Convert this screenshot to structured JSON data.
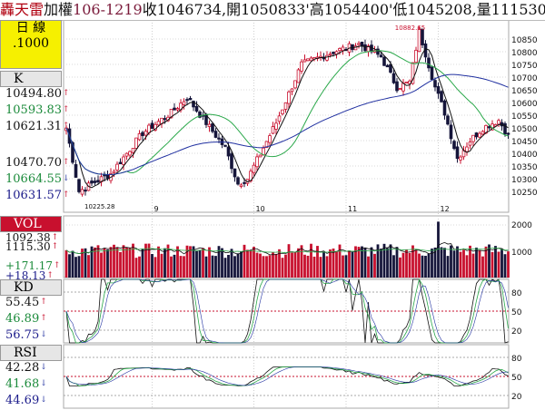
{
  "header": {
    "name": "轟天雷",
    "board": "加權",
    "date": "106-1219",
    "close_label": "收",
    "close": "1046734",
    "open_label": ",開",
    "open": "1050833'",
    "high_label": "高",
    "high": "1054400'",
    "low_label": "低",
    "low": "1045208",
    "vol_label": ",量",
    "vol": "111530'"
  },
  "logo": {
    "line1": "日  線",
    "line2": ".1000"
  },
  "panels": {
    "k": {
      "title": "K",
      "values": [
        {
          "text": "10494.80",
          "color": "#111111",
          "arrow": "up"
        },
        {
          "text": "10593.83",
          "color": "#1a8a3a",
          "arrow": "up"
        },
        {
          "text": "10621.31",
          "color": "#111111",
          "arrow": "up"
        },
        {
          "text": "10470.70",
          "color": "#111111",
          "arrow": "up"
        },
        {
          "text": "10664.55",
          "color": "#1a8a3a",
          "arrow": "down"
        },
        {
          "text": "10631.57",
          "color": "#1a1a8a",
          "arrow": "up"
        }
      ]
    },
    "vol": {
      "title": "VOL",
      "values": [
        {
          "text": "1092.38",
          "color": "#111111",
          "arrow": "up"
        },
        {
          "text": "1115.30",
          "color": "#111111",
          "arrow": "up"
        },
        {
          "text": "+171.17",
          "color": "#1a8a3a",
          "arrow": "up"
        },
        {
          "text": "+18.13",
          "color": "#1a1a8a",
          "arrow": "up"
        }
      ]
    },
    "kd": {
      "title": "KD",
      "values": [
        {
          "text": "55.45",
          "color": "#111111",
          "arrow": "up"
        },
        {
          "text": "46.89",
          "color": "#1a8a3a",
          "arrow": "up"
        },
        {
          "text": "56.75",
          "color": "#1a1a8a",
          "arrow": "down"
        }
      ]
    },
    "rsi": {
      "title": "RSI",
      "values": [
        {
          "text": "42.28",
          "color": "#111111",
          "arrow": "down"
        },
        {
          "text": "41.68",
          "color": "#1a8a3a",
          "arrow": "down"
        },
        {
          "text": "44.69",
          "color": "#1a1a8a",
          "arrow": "down"
        }
      ]
    }
  },
  "chart_data": {
    "type": "candlestick",
    "price_ticks": [
      "10850",
      "10800",
      "10750",
      "10700",
      "10650",
      "10600",
      "10550",
      "10500",
      "10450",
      "10400",
      "10350",
      "10300",
      "10250"
    ],
    "month_labels": [
      {
        "label": "9",
        "index": 27
      },
      {
        "label": "10",
        "index": 59
      },
      {
        "label": "11",
        "index": 88
      },
      {
        "label": "12",
        "index": 117
      }
    ],
    "annotations": [
      {
        "text": "10882.65",
        "index": 111
      },
      {
        "text": "10225.28",
        "index": 4
      }
    ],
    "vol_ticks": [
      "2000",
      "1000"
    ],
    "kd_ticks": [
      "80",
      "50",
      "20"
    ],
    "rsi_ticks": [
      "80",
      "50",
      "20"
    ],
    "colors": {
      "up": "#c8102e",
      "down": "#15153a",
      "ma_short": "#111111",
      "ma_mid": "#2aa84a",
      "ma_long": "#2030a0"
    }
  }
}
